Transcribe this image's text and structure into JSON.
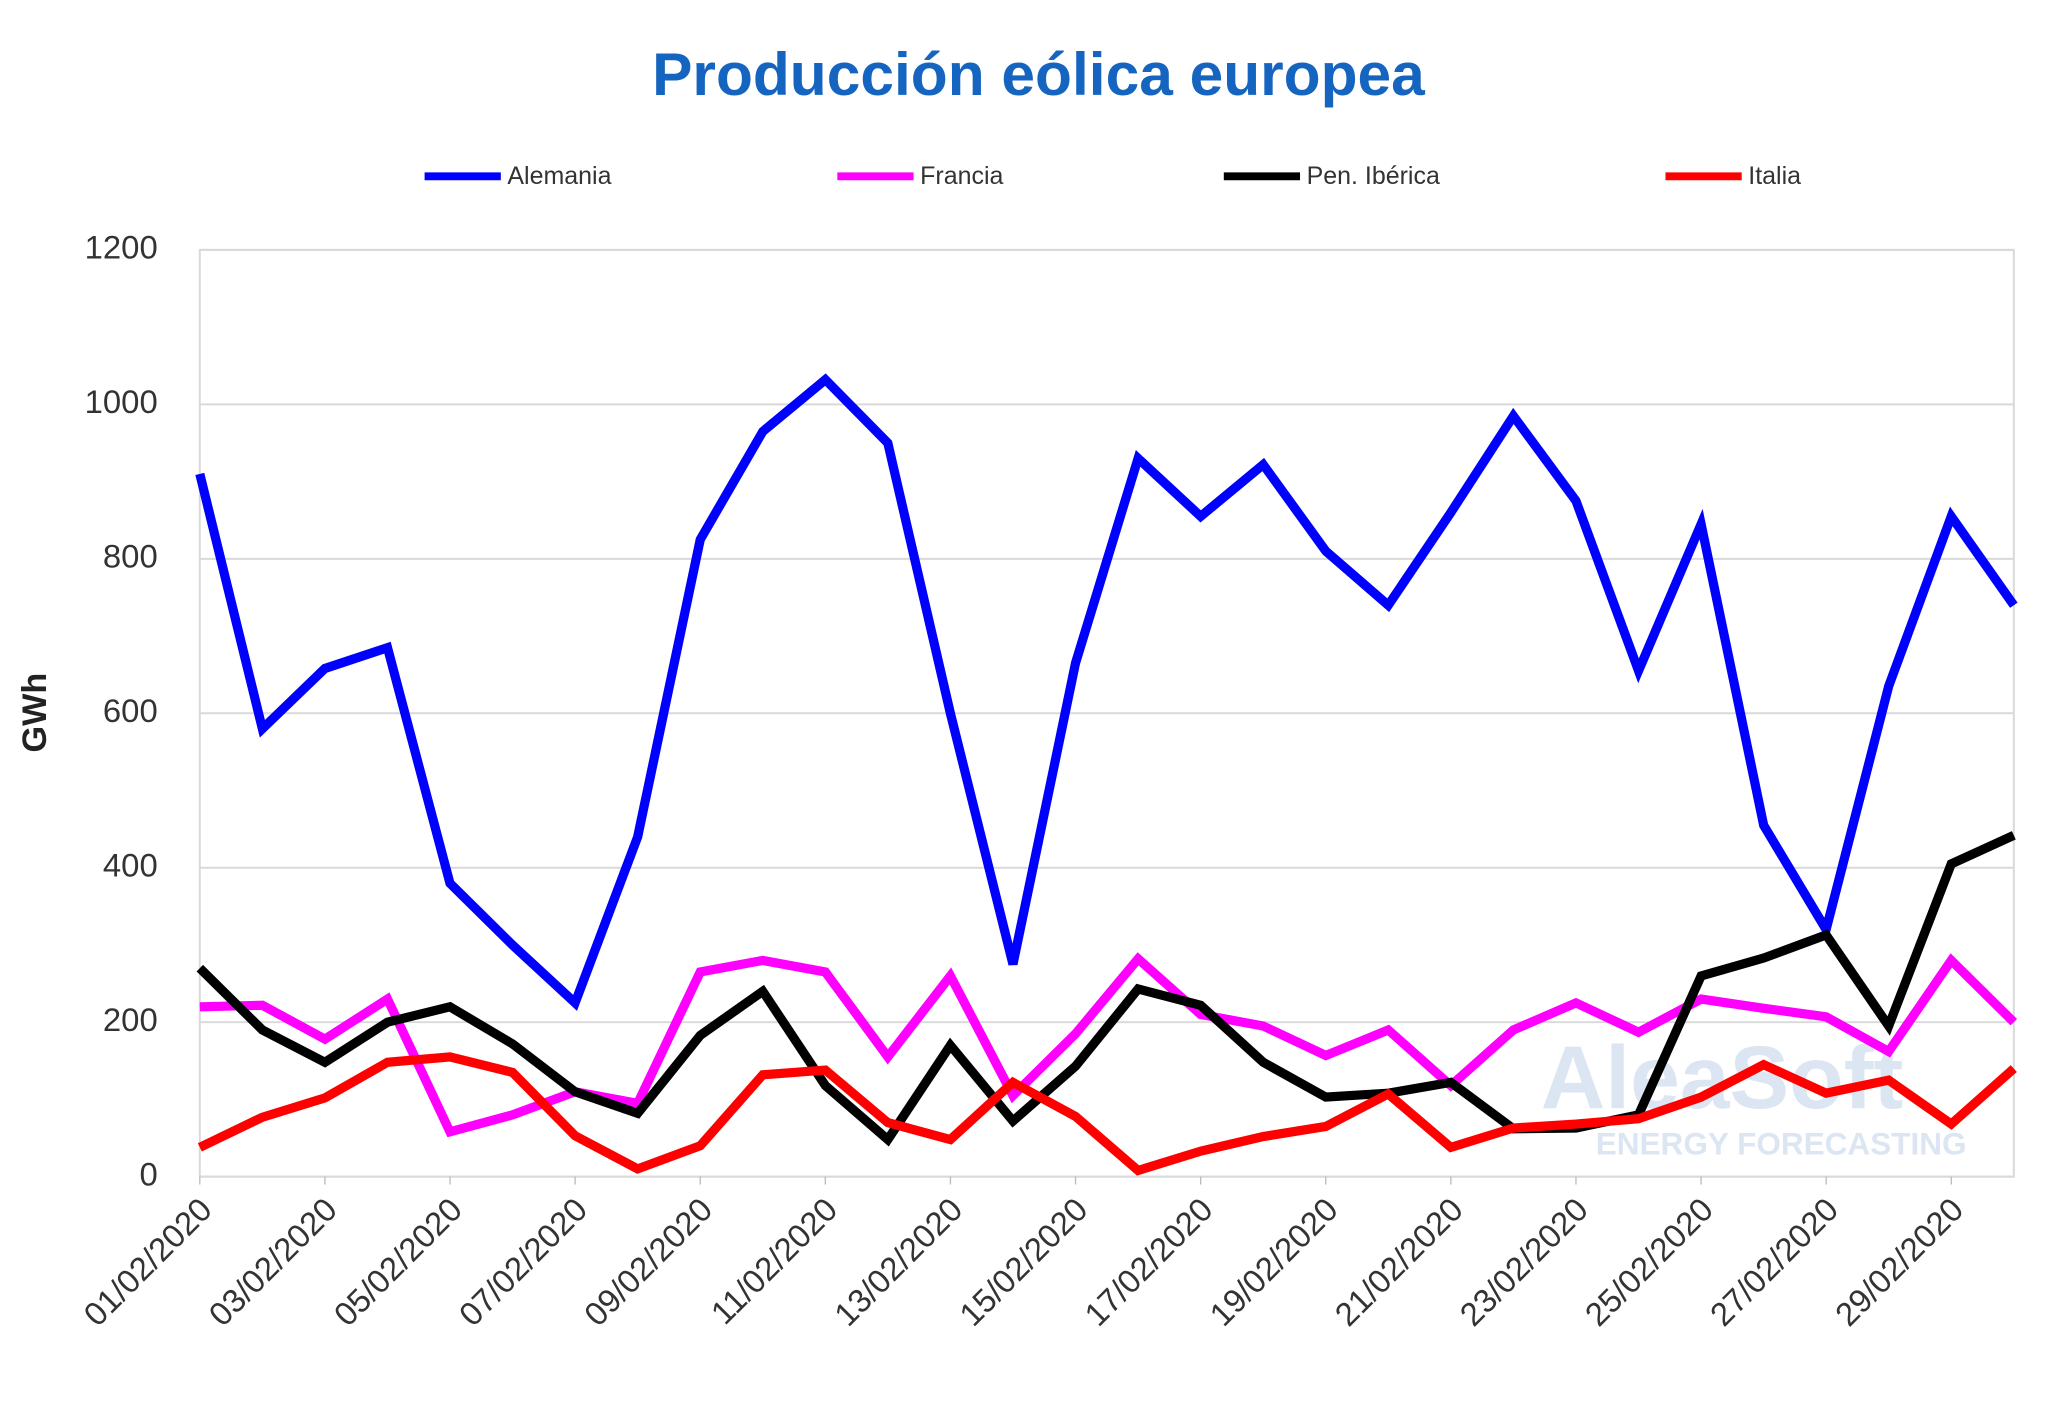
{
  "chart_data": {
    "type": "line",
    "title": "Producción eólica europea",
    "y_label": "GWh",
    "watermark": {
      "name": "AleaSoft",
      "tagline": "ENERGY FORECASTING"
    },
    "categories": [
      "01/02/2020",
      null,
      "03/02/2020",
      null,
      "05/02/2020",
      null,
      "07/02/2020",
      null,
      "09/02/2020",
      null,
      "11/02/2020",
      null,
      "13/02/2020",
      null,
      "15/02/2020",
      null,
      "17/02/2020",
      null,
      "19/02/2020",
      null,
      "21/02/2020",
      null,
      "23/02/2020",
      null,
      "25/02/2020",
      null,
      "27/02/2020",
      null,
      "29/02/2020",
      null
    ],
    "series": [
      {
        "name": "Alemania",
        "color": "#0000ff",
        "values": [
          910,
          580,
          658,
          685,
          380,
          300,
          225,
          440,
          825,
          965,
          1032,
          950,
          600,
          275,
          665,
          930,
          855,
          922,
          810,
          740,
          860,
          985,
          875,
          655,
          845,
          455,
          320,
          635,
          855,
          740
        ]
      },
      {
        "name": "Francia",
        "color": "#ff00ff",
        "values": [
          220,
          222,
          178,
          230,
          58,
          80,
          110,
          95,
          265,
          280,
          265,
          155,
          260,
          105,
          185,
          282,
          210,
          195,
          157,
          190,
          118,
          190,
          225,
          187,
          230,
          218,
          207,
          162,
          280,
          200
        ]
      },
      {
        "name": "Pen. Ibérica",
        "color": "#000000",
        "values": [
          270,
          190,
          148,
          200,
          220,
          172,
          110,
          82,
          183,
          240,
          118,
          48,
          170,
          72,
          143,
          243,
          222,
          148,
          103,
          108,
          122,
          62,
          63,
          80,
          260,
          283,
          313,
          195,
          405,
          442
        ]
      },
      {
        "name": "Italia",
        "color": "#ff0000",
        "values": [
          38,
          77,
          102,
          148,
          155,
          135,
          53,
          10,
          40,
          132,
          138,
          70,
          48,
          122,
          78,
          8,
          33,
          52,
          65,
          107,
          38,
          63,
          68,
          75,
          103,
          145,
          108,
          125,
          68,
          140
        ]
      }
    ],
    "ylim": [
      0,
      1200
    ],
    "yticks": [
      0,
      200,
      400,
      600,
      800,
      1000,
      1200
    ],
    "grid": true,
    "legend": "top"
  }
}
